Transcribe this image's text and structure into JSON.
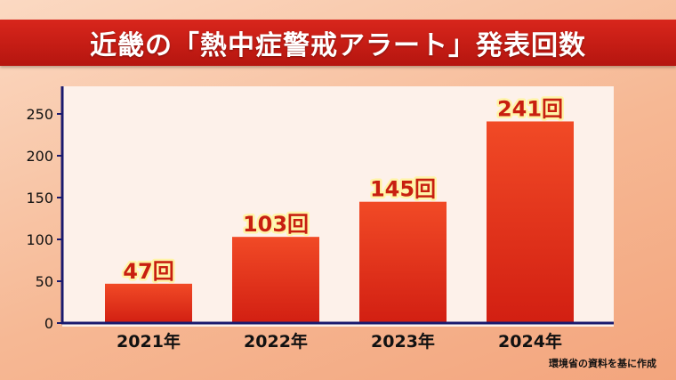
{
  "title": "近畿の「熱中症警戒アラート」発表回数",
  "source": "環境省の資料を基に作成",
  "colors": {
    "title_bar": "#c81d16",
    "bar_top": "#f14a26",
    "bar_bottom": "#d21f12",
    "axis": "#1a1a6e",
    "value_text": "#c81f10",
    "value_outline": "#fff4a8"
  },
  "chart_data": {
    "type": "bar",
    "categories": [
      "2021年",
      "2022年",
      "2023年",
      "2024年"
    ],
    "values": [
      47,
      103,
      145,
      241
    ],
    "value_labels": [
      "47回",
      "103回",
      "145回",
      "241回"
    ],
    "yticks": [
      0,
      50,
      100,
      150,
      200,
      250
    ],
    "ylim": [
      0,
      270
    ],
    "grid": false,
    "legend": "none"
  }
}
